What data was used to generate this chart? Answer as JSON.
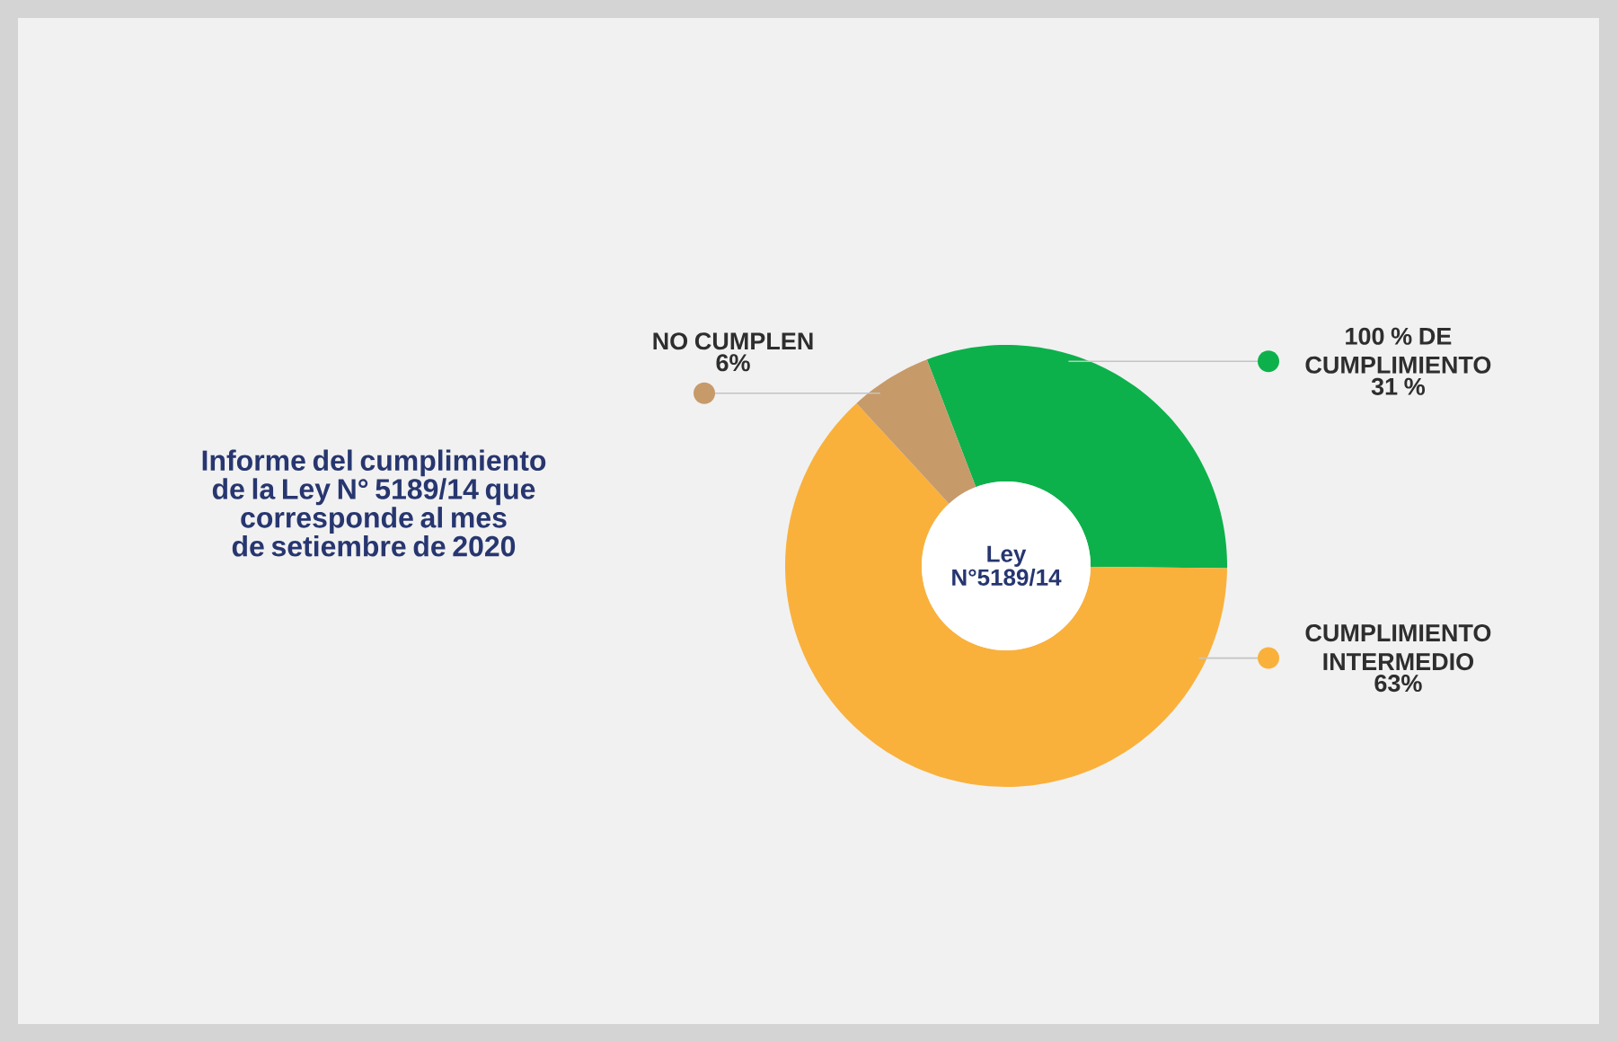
{
  "chart_data": {
    "type": "donut",
    "title": "Informe del cumplimiento de la Ley N° 5189/14 que corresponde al mes de setiembre de 2020",
    "categories": [
      "100 % DE CUMPLIMIENTO",
      "CUMPLIMIENTO INTERMEDIO",
      "NO CUMPLEN"
    ],
    "values": [
      31,
      63,
      6
    ],
    "value_labels": [
      "31 %",
      "63%",
      "6%"
    ],
    "colors": [
      "#0db14b",
      "#f9b13c",
      "#c79a6a"
    ],
    "annotations": [
      "Ley N°5189/14"
    ]
  }
}
